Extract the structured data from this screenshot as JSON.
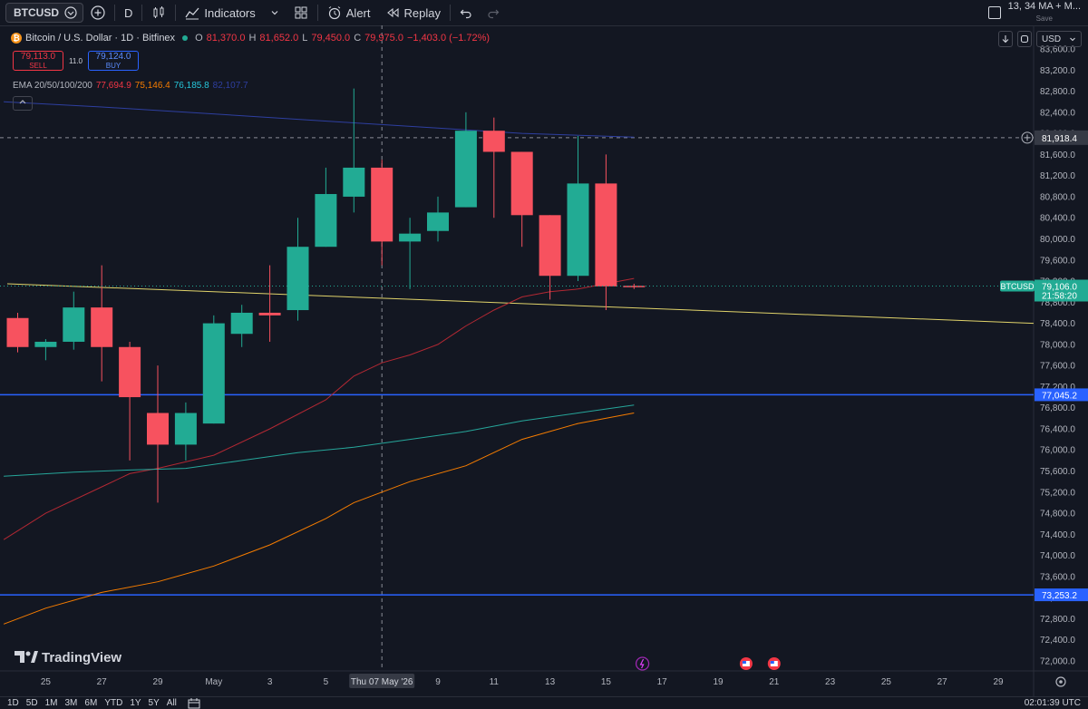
{
  "toolbar": {
    "symbol": "BTCUSD",
    "interval": "D",
    "indicators_label": "Indicators",
    "alert_label": "Alert",
    "replay_label": "Replay",
    "layout_name": "13, 34 MA + M...",
    "save_label": "Save"
  },
  "legend": {
    "title": "Bitcoin / U.S. Dollar · 1D · Bitfinex",
    "o_label": "O",
    "o": "81,370.0",
    "h_label": "H",
    "h": "81,652.0",
    "l_label": "L",
    "l": "79,450.0",
    "c_label": "C",
    "c": "79,975.0",
    "change": "−1,403.0 (−1.72%)"
  },
  "trade": {
    "sell_price": "79,113.0",
    "sell_label": "SELL",
    "spread": "11.0",
    "buy_price": "79,124.0",
    "buy_label": "BUY"
  },
  "ema": {
    "label": "EMA 20/50/100/200",
    "v20": "77,694.9",
    "v50": "75,146.4",
    "v100": "76,185.8",
    "v200": "82,107.7"
  },
  "currency": "USD",
  "colors": {
    "up": "#22ab94",
    "down": "#f7525f",
    "ema20": "#b22833",
    "ema50": "#f57c00",
    "ema100": "#26a69a",
    "ema200": "#2e3fa0",
    "trend": "#e0d36a",
    "hline": "#2962ff"
  },
  "chart_data": {
    "type": "candlestick",
    "title": "Bitcoin / U.S. Dollar · 1D · Bitfinex",
    "x_ticks": [
      "25",
      "27",
      "29",
      "May",
      "3",
      "5",
      "Thu 07 May '26",
      "9",
      "11",
      "13",
      "15",
      "17",
      "19",
      "21",
      "23",
      "25",
      "27",
      "29"
    ],
    "y_ticks": [
      "83,600.0",
      "83,200.0",
      "82,800.0",
      "82,400.0",
      "82,000.0",
      "81,600.0",
      "81,200.0",
      "80,800.0",
      "80,400.0",
      "80,000.0",
      "79,600.0",
      "79,200.0",
      "78,800.0",
      "78,400.0",
      "78,000.0",
      "77,600.0",
      "77,200.0",
      "76,800.0",
      "76,400.0",
      "76,000.0",
      "75,600.0",
      "75,200.0",
      "74,800.0",
      "74,400.0",
      "74,000.0",
      "73,600.0",
      "73,200.0",
      "72,800.0",
      "72,400.0",
      "72,000.0"
    ],
    "ylim": [
      71800,
      84000
    ],
    "candles": [
      {
        "date": "Apr 24",
        "o": 78500,
        "h": 78600,
        "l": 77850,
        "c": 77950
      },
      {
        "date": "Apr 25",
        "o": 77950,
        "h": 78100,
        "l": 77700,
        "c": 78050
      },
      {
        "date": "Apr 26",
        "o": 78050,
        "h": 79000,
        "l": 77900,
        "c": 78700
      },
      {
        "date": "Apr 27",
        "o": 78700,
        "h": 79500,
        "l": 77300,
        "c": 77950
      },
      {
        "date": "Apr 28",
        "o": 77950,
        "h": 78050,
        "l": 75800,
        "c": 77000
      },
      {
        "date": "Apr 29",
        "o": 76700,
        "h": 77600,
        "l": 75000,
        "c": 76100
      },
      {
        "date": "Apr 30",
        "o": 76100,
        "h": 76900,
        "l": 75800,
        "c": 76700
      },
      {
        "date": "May 1",
        "o": 76500,
        "h": 78550,
        "l": 76500,
        "c": 78400
      },
      {
        "date": "May 2",
        "o": 78200,
        "h": 78750,
        "l": 77950,
        "c": 78600
      },
      {
        "date": "May 3",
        "o": 78600,
        "h": 79500,
        "l": 78050,
        "c": 78550
      },
      {
        "date": "May 4",
        "o": 78650,
        "h": 80400,
        "l": 78450,
        "c": 79850
      },
      {
        "date": "May 5",
        "o": 79850,
        "h": 81350,
        "l": 79850,
        "c": 80850
      },
      {
        "date": "May 6",
        "o": 80800,
        "h": 82850,
        "l": 80500,
        "c": 81350
      },
      {
        "date": "May 7",
        "o": 81350,
        "h": 81500,
        "l": 79500,
        "c": 79950
      },
      {
        "date": "May 8",
        "o": 79950,
        "h": 80400,
        "l": 79050,
        "c": 80100
      },
      {
        "date": "May 9",
        "o": 80150,
        "h": 80800,
        "l": 79950,
        "c": 80500
      },
      {
        "date": "May 10",
        "o": 80600,
        "h": 82400,
        "l": 80600,
        "c": 82050
      },
      {
        "date": "May 11",
        "o": 82050,
        "h": 82300,
        "l": 80400,
        "c": 81650
      },
      {
        "date": "May 12",
        "o": 81650,
        "h": 81650,
        "l": 79850,
        "c": 80450
      },
      {
        "date": "May 13",
        "o": 80450,
        "h": 80450,
        "l": 78850,
        "c": 79300
      },
      {
        "date": "May 14",
        "o": 79300,
        "h": 81950,
        "l": 79200,
        "c": 81050
      },
      {
        "date": "May 15",
        "o": 81050,
        "h": 81600,
        "l": 78650,
        "c": 79100
      },
      {
        "date": "May 16",
        "o": 79110,
        "h": 79150,
        "l": 79050,
        "c": 79106
      }
    ],
    "price_labels": [
      {
        "label": "81,918.4",
        "value": 81918.4
      },
      {
        "label": "79,106.0",
        "value": 79106,
        "symbol": "BTCUSD",
        "countdown": "21:58:20"
      },
      {
        "label": "77,045.2",
        "value": 77045.2
      },
      {
        "label": "73,253.2",
        "value": 73253.2
      }
    ],
    "watermark": "TradingView"
  },
  "bottom": {
    "ranges": [
      "1D",
      "5D",
      "1M",
      "3M",
      "6M",
      "YTD",
      "1Y",
      "5Y",
      "All"
    ],
    "time": "02:01:39 UTC"
  }
}
